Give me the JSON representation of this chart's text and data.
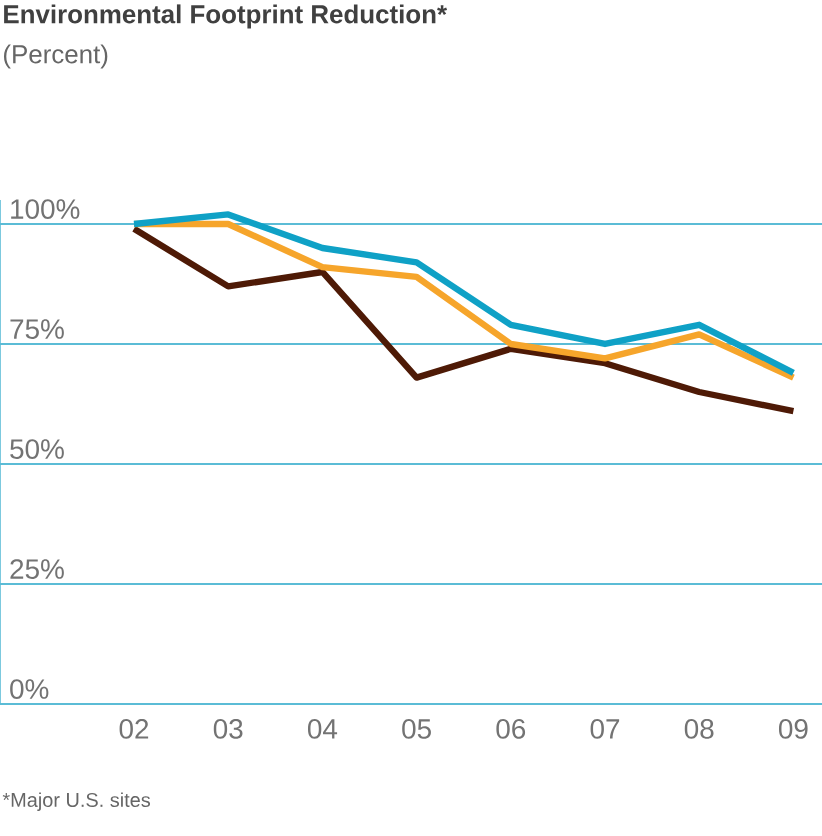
{
  "chart_data": {
    "type": "line",
    "title": "Environmental Footprint Reduction*",
    "subtitle": "(Percent)",
    "annotations": [
      "*Major U.S. sites"
    ],
    "categories": [
      "02",
      "03",
      "04",
      "05",
      "06",
      "07",
      "08",
      "09"
    ],
    "series": [
      {
        "color": "#4e1a06",
        "values": [
          99,
          87,
          90,
          68,
          74,
          71,
          65,
          61
        ]
      },
      {
        "color": "#f6a52b",
        "values": [
          100,
          100,
          91,
          89,
          75,
          72,
          77,
          68
        ]
      },
      {
        "color": "#0fa1c6",
        "values": [
          100,
          102,
          95,
          92,
          79,
          75,
          79,
          69
        ]
      }
    ],
    "ylim": [
      0,
      105
    ],
    "yticks": [
      {
        "value": 0,
        "label": "0%"
      },
      {
        "value": 25,
        "label": "25%"
      },
      {
        "value": 50,
        "label": "50%"
      },
      {
        "value": 75,
        "label": "75%"
      },
      {
        "value": 100,
        "label": "100%"
      }
    ],
    "grid": "y",
    "marker": "none",
    "line_style": "solid"
  }
}
